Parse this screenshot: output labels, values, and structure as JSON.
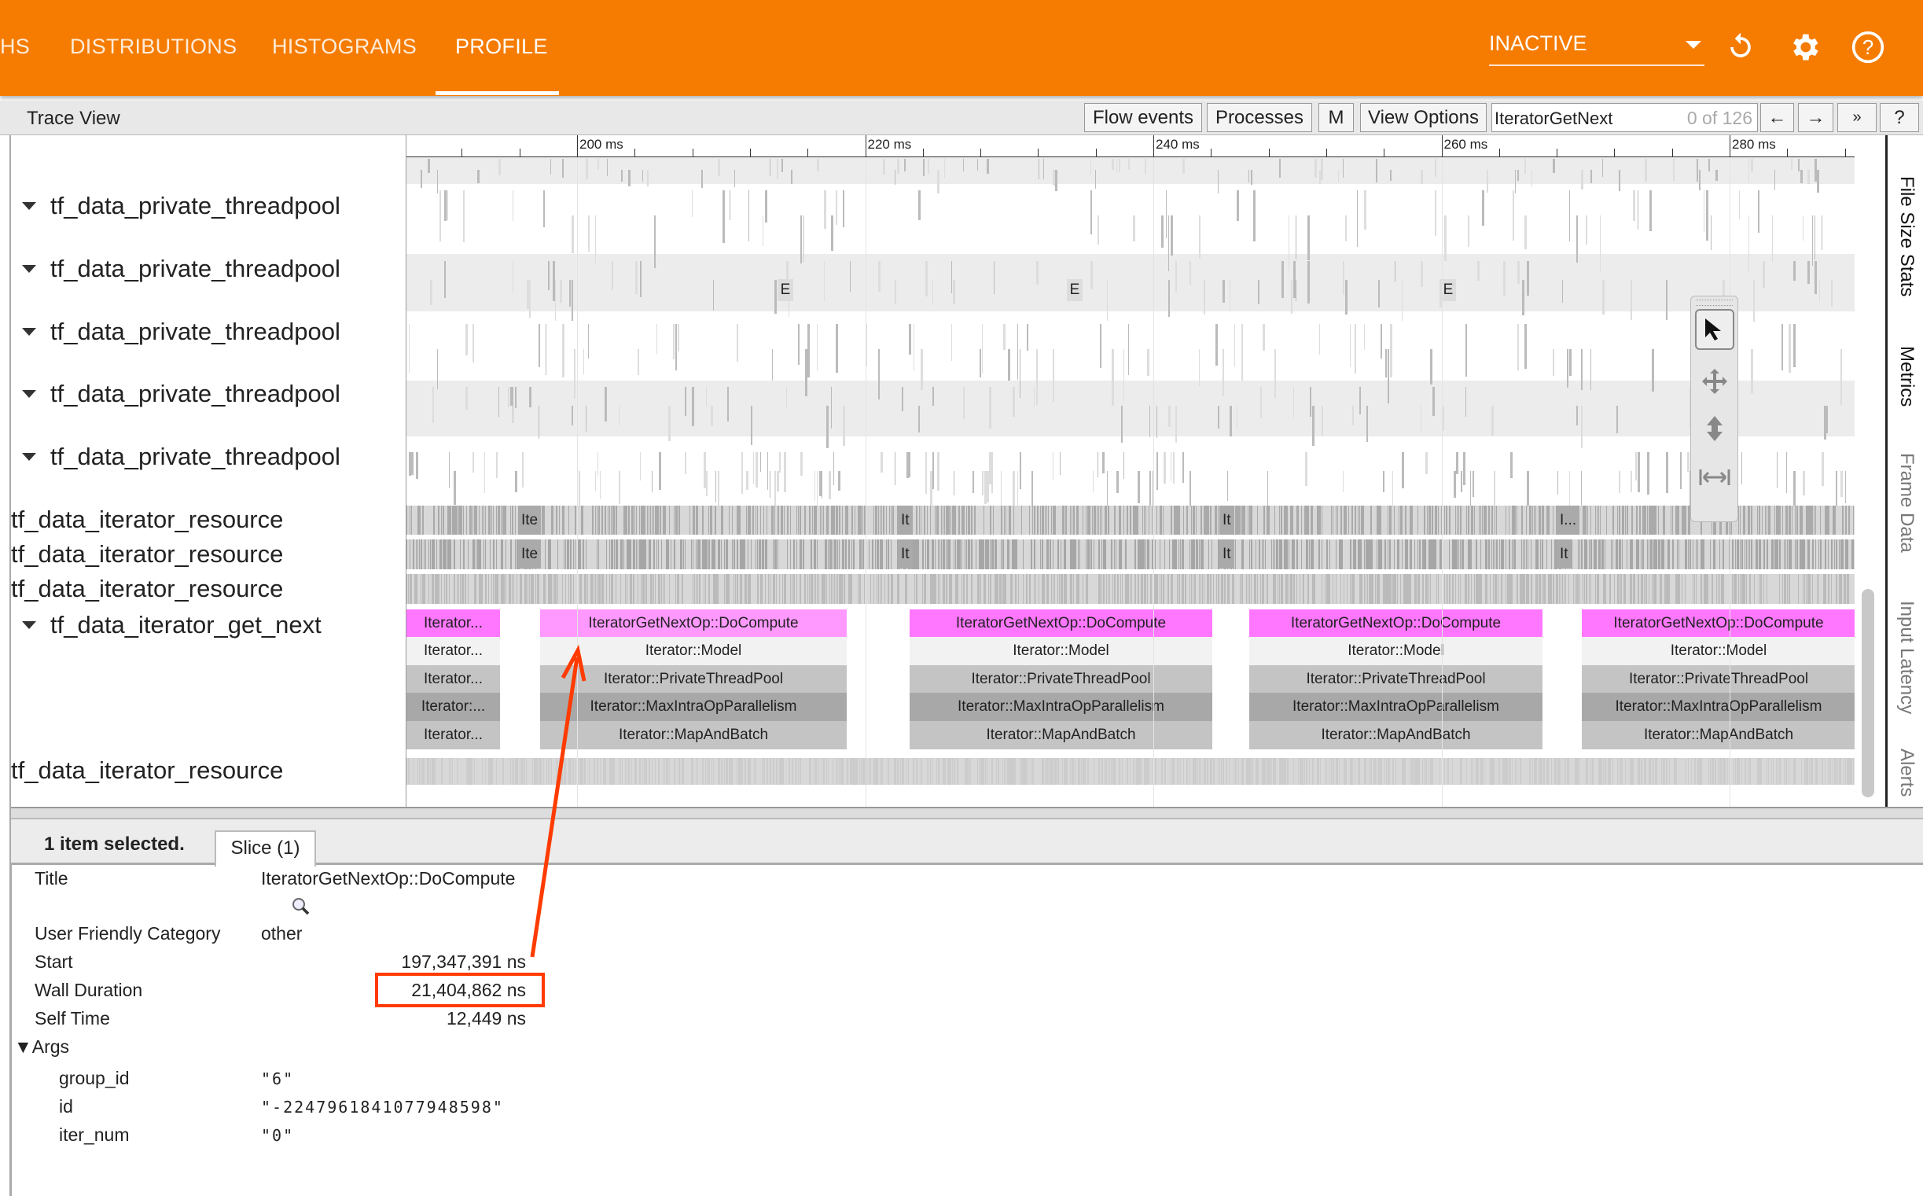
{
  "header": {
    "tabs": [
      {
        "label": "HS"
      },
      {
        "label": "DISTRIBUTIONS"
      },
      {
        "label": "HISTOGRAMS"
      },
      {
        "label": "PROFILE",
        "active": true
      }
    ],
    "run_select": "INACTIVE",
    "icons": [
      "refresh-icon",
      "gear-icon",
      "help-icon"
    ],
    "accent": "#f57c00"
  },
  "toolbar": {
    "title": "Trace View",
    "flow_events": "Flow events",
    "processes": "Processes",
    "m": "M",
    "view_options": "View Options",
    "search_value": "IteratorGetNext",
    "search_count": "0 of 126",
    "prev": "←",
    "next": "→",
    "more": "»",
    "help": "?"
  },
  "ruler": {
    "ticks": [
      "200 ms",
      "220 ms",
      "240 ms",
      "260 ms",
      "280 ms"
    ]
  },
  "tracks": {
    "threadpool": [
      "tf_data_private_threadpool",
      "tf_data_private_threadpool",
      "tf_data_private_threadpool",
      "tf_data_private_threadpool",
      "tf_data_private_threadpool"
    ],
    "resource": [
      "tf_data_iterator_resource",
      "tf_data_iterator_resource",
      "tf_data_iterator_resource"
    ],
    "get_next": "tf_data_iterator_get_next",
    "last_resource": "tf_data_iterator_resource",
    "markers": [
      "E",
      "E",
      "E"
    ],
    "resource_labels_1": [
      "Ite",
      "It",
      "It",
      "I..."
    ],
    "resource_labels_2": [
      "Ite",
      "It",
      "It",
      "It"
    ]
  },
  "slices": {
    "first": [
      "Iterator...",
      "Iterator...",
      "Iterator...",
      "Iterator:...",
      "Iterator..."
    ],
    "stack": [
      "IteratorGetNextOp::DoCompute",
      "Iterator::Model",
      "Iterator::PrivateThreadPool",
      "Iterator::MaxIntraOpParallelism",
      "Iterator::MapAndBatch"
    ],
    "colors": {
      "selected": "#ff99ff",
      "compute": "#ff77ff",
      "model": "#f2f2f2",
      "pool": "#c4c4c4",
      "max": "#a8a8a8",
      "map": "#c4c4c4"
    }
  },
  "side_tabs": [
    "File Size Stats",
    "Metrics",
    "Frame Data",
    "Input Latency",
    "Alerts"
  ],
  "details": {
    "selected_count": "1 item selected.",
    "tab": "Slice (1)",
    "rows": [
      {
        "label": "Title",
        "value": "IteratorGetNextOp::DoCompute"
      },
      {
        "label": "User Friendly Category",
        "value": "other"
      },
      {
        "label": "Start",
        "value": "197,347,391 ns"
      },
      {
        "label": "Wall Duration",
        "value": "21,404,862 ns"
      },
      {
        "label": "Self Time",
        "value": "12,449 ns"
      }
    ],
    "args_label": "▼Args",
    "args": [
      {
        "label": "group_id",
        "value": "\"6\""
      },
      {
        "label": "id",
        "value": "\"-2247961841077948598\""
      },
      {
        "label": "iter_num",
        "value": "\"0\""
      }
    ]
  },
  "annotation_color": "#ff3b00"
}
